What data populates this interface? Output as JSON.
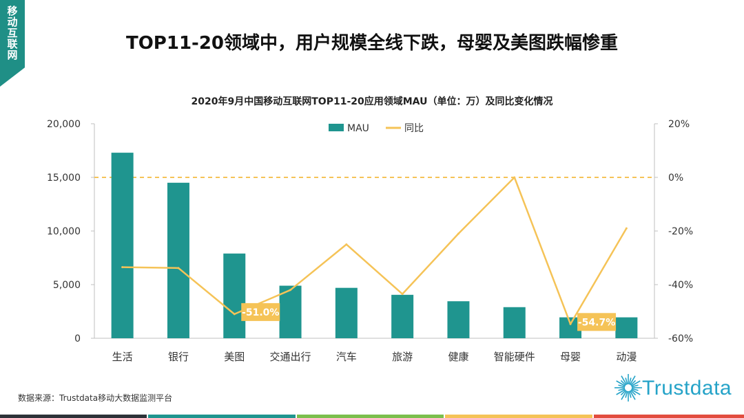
{
  "side_tab": {
    "label": "移动互联网"
  },
  "headline": "TOP11-20领域中，用户规模全线下跌，母婴及美图跌幅惨重",
  "source": "数据来源：Trustdata移动大数据监测平台",
  "logo": {
    "text": "Trustdata",
    "icon": "starburst-icon"
  },
  "colors": {
    "bar": "#1f958f",
    "line": "#f5c357",
    "callout": "#f5c357",
    "tab": "#1f8f86",
    "footer": [
      "#2d3238",
      "#1f958f",
      "#7bbf4c",
      "#f5c357",
      "#e24c3e"
    ]
  },
  "chart_data": {
    "type": "bar",
    "title": "2020年9月中国移动互联网TOP11-20应用领域MAU（单位：万）及同比变化情况",
    "categories": [
      "生活",
      "银行",
      "美图",
      "交通出行",
      "汽车",
      "旅游",
      "健康",
      "智能硬件",
      "母婴",
      "动漫"
    ],
    "series": [
      {
        "name": "MAU",
        "type": "bar",
        "axis": "left",
        "values": [
          17300,
          14500,
          7900,
          4900,
          4700,
          4050,
          3450,
          2900,
          1950,
          1950
        ]
      },
      {
        "name": "同比",
        "type": "line",
        "axis": "right",
        "values": [
          -33.5,
          -33.8,
          -51.0,
          -42.0,
          -25.0,
          -43.5,
          -21.0,
          0.0,
          -54.7,
          -19.0
        ]
      }
    ],
    "y_left": {
      "min": 0,
      "max": 20000,
      "ticks": [
        "0",
        "5,000",
        "10,000",
        "15,000",
        "20,000"
      ]
    },
    "y_right": {
      "min": -60,
      "max": 20,
      "ticks": [
        "-60%",
        "-40%",
        "-20%",
        "0%",
        "20%"
      ]
    },
    "reference_line": {
      "axis": "right",
      "value": 0,
      "style": "dashed"
    },
    "callouts": [
      {
        "index": 2,
        "label": "-51.0%"
      },
      {
        "index": 8,
        "label": "-54.7%"
      }
    ],
    "legend": {
      "position": "top-center",
      "items": [
        "MAU",
        "同比"
      ]
    }
  }
}
